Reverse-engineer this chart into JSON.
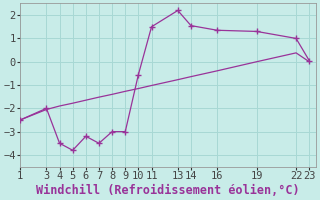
{
  "xlabel": "Windchill (Refroidissement éolien,°C)",
  "bg_color": "#c8ece8",
  "grid_color": "#a8d8d4",
  "line_color": "#993399",
  "x_data": [
    1,
    3,
    4,
    5,
    6,
    7,
    8,
    9,
    10,
    11,
    13,
    14,
    16,
    19,
    22,
    23
  ],
  "y_data": [
    -2.5,
    -2.0,
    -3.5,
    -3.8,
    -3.2,
    -3.5,
    -3.0,
    -3.0,
    -0.55,
    1.5,
    2.2,
    1.55,
    1.35,
    1.3,
    1.0,
    0.05
  ],
  "x_trend": [
    1,
    3,
    4,
    5,
    6,
    7,
    8,
    9,
    10,
    11,
    13,
    14,
    16,
    19,
    22,
    23
  ],
  "y_trend": [
    -2.5,
    -2.05,
    -1.9,
    -1.78,
    -1.65,
    -1.52,
    -1.4,
    -1.27,
    -1.15,
    -1.02,
    -0.77,
    -0.64,
    -0.39,
    0.0,
    0.38,
    0.0
  ],
  "xticks": [
    1,
    3,
    4,
    5,
    6,
    7,
    8,
    9,
    10,
    11,
    13,
    14,
    16,
    19,
    22,
    23
  ],
  "yticks": [
    -4,
    -3,
    -2,
    -1,
    0,
    1,
    2
  ],
  "xlim": [
    1,
    23.5
  ],
  "ylim": [
    -4.5,
    2.5
  ],
  "tick_fontsize": 7.5,
  "xlabel_fontsize": 8.5
}
